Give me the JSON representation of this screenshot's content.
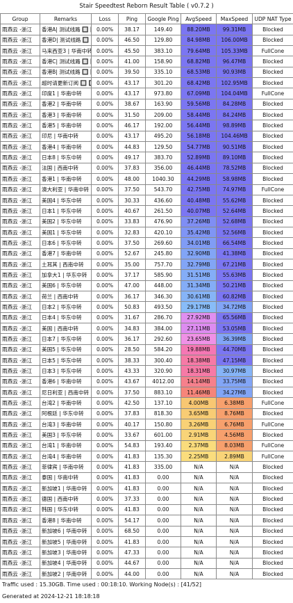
{
  "title": "Stair Speedtest Reborn Result Table ( v0.7.2 )",
  "headers": [
    "Group",
    "Remarks",
    "Loss",
    "Ping",
    "Google Ping",
    "AvgSpeed",
    "MaxSpeed",
    "UDP NAT Type"
  ],
  "rows": [
    {
      "group": "雨燕云 -浙江",
      "remark": "香港A| 测试线路 🔲 🔲",
      "loss": "0.00%",
      "ping": "38.17",
      "gping": "149.40",
      "avg": "88.20MB",
      "avg_color": "#7b76f2",
      "max": "99.31MB",
      "max_color": "#7b76f2",
      "nat": "Blocked"
    },
    {
      "group": "雨燕云 -浙江",
      "remark": "香港D| 测试线路 🔲 🔲",
      "loss": "0.00%",
      "ping": "46.50",
      "gping": "129.80",
      "avg": "84.98MB",
      "avg_color": "#7b76f2",
      "max": "106.00MB",
      "max_color": "#7b76f2",
      "nat": "Blocked"
    },
    {
      "group": "雨燕云 -浙江",
      "remark": "马来西亚3 | 华南中转",
      "loss": "0.00%",
      "ping": "45.50",
      "gping": "383.10",
      "avg": "79.64MB",
      "avg_color": "#7b76f2",
      "max": "105.33MB",
      "max_color": "#7b76f2",
      "nat": "FullCone"
    },
    {
      "group": "雨燕云 -浙江",
      "remark": "香港C| 测试线路 🔲 🔲",
      "loss": "0.00%",
      "ping": "41.00",
      "gping": "158.90",
      "avg": "68.82MB",
      "avg_color": "#7b76f2",
      "max": "96.47MB",
      "max_color": "#7b76f2",
      "nat": "Blocked"
    },
    {
      "group": "雨燕云 -浙江",
      "remark": "香港B| 测试线路 🔲 🔲",
      "loss": "0.00%",
      "ping": "39.50",
      "gping": "335.10",
      "avg": "68.53MB",
      "avg_color": "#7b76f2",
      "max": "90.93MB",
      "max_color": "#7b76f2",
      "nat": "Blocked"
    },
    {
      "group": "雨燕云 -浙江",
      "remark": "超时请更新订阅 🔲 🔲",
      "loss": "0.00%",
      "ping": "43.17",
      "gping": "301.20",
      "avg": "68.42MB",
      "avg_color": "#7b76f2",
      "max": "102.95MB",
      "max_color": "#7b76f2",
      "nat": "Blocked"
    },
    {
      "group": "雨燕云 -浙江",
      "remark": "印度1 | 华南中转",
      "loss": "0.00%",
      "ping": "43.17",
      "gping": "973.80",
      "avg": "67.09MB",
      "avg_color": "#7b76f2",
      "max": "104.04MB",
      "max_color": "#7b76f2",
      "nat": "FullCone"
    },
    {
      "group": "雨燕云 -浙江",
      "remark": "香港2 | 华南中转",
      "loss": "0.00%",
      "ping": "38.67",
      "gping": "163.90",
      "avg": "59.56MB",
      "avg_color": "#7b76f2",
      "max": "84.28MB",
      "max_color": "#7b76f2",
      "nat": "Blocked"
    },
    {
      "group": "雨燕云 -浙江",
      "remark": "香港3 | 华南中转",
      "loss": "0.00%",
      "ping": "31.50",
      "gping": "209.00",
      "avg": "58.44MB",
      "avg_color": "#7b76f2",
      "max": "84.24MB",
      "max_color": "#7b76f2",
      "nat": "Blocked"
    },
    {
      "group": "雨燕云 -浙江",
      "remark": "香港5 | 华南中转",
      "loss": "0.00%",
      "ping": "46.17",
      "gping": "192.00",
      "avg": "56.44MB",
      "avg_color": "#7b76f2",
      "max": "98.89MB",
      "max_color": "#7b76f2",
      "nat": "Blocked"
    },
    {
      "group": "雨燕云 -浙江",
      "remark": "印尼 | 华南中转",
      "loss": "0.00%",
      "ping": "43.17",
      "gping": "495.20",
      "avg": "56.18MB",
      "avg_color": "#7b76f2",
      "max": "104.46MB",
      "max_color": "#7b76f2",
      "nat": "Blocked"
    },
    {
      "group": "雨燕云 -浙江",
      "remark": "香港4 | 华南中转",
      "loss": "0.00%",
      "ping": "44.83",
      "gping": "129.50",
      "avg": "54.77MB",
      "avg_color": "#7b76f2",
      "max": "90.51MB",
      "max_color": "#7b76f2",
      "nat": "Blocked"
    },
    {
      "group": "雨燕云 -浙江",
      "remark": "日本8 | 华东中转",
      "loss": "0.00%",
      "ping": "49.17",
      "gping": "383.70",
      "avg": "52.89MB",
      "avg_color": "#7b76f2",
      "max": "89.10MB",
      "max_color": "#7b76f2",
      "nat": "Blocked"
    },
    {
      "group": "雨燕云 -浙江",
      "remark": "法国 | 西南中转",
      "loss": "0.00%",
      "ping": "37.83",
      "gping": "356.00",
      "avg": "46.44MB",
      "avg_color": "#7b76f2",
      "max": "78.52MB",
      "max_color": "#7b76f2",
      "nat": "Blocked"
    },
    {
      "group": "雨燕云 -浙江",
      "remark": "香港1 | 华南中转",
      "loss": "0.00%",
      "ping": "48.00",
      "gping": "1040.30",
      "avg": "44.29MB",
      "avg_color": "#7b76f2",
      "max": "58.98MB",
      "max_color": "#7b76f2",
      "nat": "Blocked"
    },
    {
      "group": "雨燕云 -浙江",
      "remark": "澳大利亚 | 华南中转",
      "loss": "0.00%",
      "ping": "37.50",
      "gping": "543.70",
      "avg": "42.75MB",
      "avg_color": "#7b76f2",
      "max": "74.97MB",
      "max_color": "#7b76f2",
      "nat": "FullCone"
    },
    {
      "group": "雨燕云 -浙江",
      "remark": "美国4 | 华东中转",
      "loss": "0.00%",
      "ping": "30.33",
      "gping": "436.60",
      "avg": "40.48MB",
      "avg_color": "#7b76f2",
      "max": "55.62MB",
      "max_color": "#7b76f2",
      "nat": "Blocked"
    },
    {
      "group": "雨燕云 -浙江",
      "remark": "日本1 | 华东中转",
      "loss": "0.00%",
      "ping": "40.67",
      "gping": "261.50",
      "avg": "40.07MB",
      "avg_color": "#7b76f2",
      "max": "52.64MB",
      "max_color": "#7b76f2",
      "nat": "Blocked"
    },
    {
      "group": "雨燕云 -浙江",
      "remark": "美国2 | 华东中转",
      "loss": "0.00%",
      "ping": "33.83",
      "gping": "476.90",
      "avg": "37.26MB",
      "avg_color": "#7f8ef4",
      "max": "52.68MB",
      "max_color": "#7b76f2",
      "nat": "Blocked"
    },
    {
      "group": "雨燕云 -浙江",
      "remark": "美国1 | 华东中转",
      "loss": "0.00%",
      "ping": "32.83",
      "gping": "420.10",
      "avg": "35.42MB",
      "avg_color": "#7f95f5",
      "max": "52.56MB",
      "max_color": "#7b76f2",
      "nat": "Blocked"
    },
    {
      "group": "雨燕云 -浙江",
      "remark": "日本6 | 华东中转",
      "loss": "0.00%",
      "ping": "37.50",
      "gping": "269.60",
      "avg": "34.01MB",
      "avg_color": "#809cf5",
      "max": "66.54MB",
      "max_color": "#7b76f2",
      "nat": "Blocked"
    },
    {
      "group": "雨燕云 -浙江",
      "remark": "香港7 | 华南中转",
      "loss": "0.00%",
      "ping": "52.67",
      "gping": "245.80",
      "avg": "32.90MB",
      "avg_color": "#82a5f6",
      "max": "41.38MB",
      "max_color": "#7b76f2",
      "nat": "Blocked"
    },
    {
      "group": "雨燕云 -浙江",
      "remark": "土耳其 | 西南中转",
      "loss": "0.00%",
      "ping": "35.00",
      "gping": "757.70",
      "avg": "32.79MB",
      "avg_color": "#82a5f6",
      "max": "67.21MB",
      "max_color": "#7b76f2",
      "nat": "Blocked"
    },
    {
      "group": "雨燕云 -浙江",
      "remark": "加拿大1 | 华东中转",
      "loss": "0.00%",
      "ping": "37.17",
      "gping": "585.90",
      "avg": "31.51MB",
      "avg_color": "#84adf7",
      "max": "55.63MB",
      "max_color": "#7b76f2",
      "nat": "Blocked"
    },
    {
      "group": "雨燕云 -浙江",
      "remark": "美国6 | 华东中转",
      "loss": "0.00%",
      "ping": "47.00",
      "gping": "448.00",
      "avg": "31.34MB",
      "avg_color": "#84adf7",
      "max": "50.21MB",
      "max_color": "#7b76f2",
      "nat": "Blocked"
    },
    {
      "group": "雨燕云 -浙江",
      "remark": "荷兰 | 西南中转",
      "loss": "0.00%",
      "ping": "36.17",
      "gping": "346.30",
      "avg": "30.61MB",
      "avg_color": "#86b4f7",
      "max": "60.82MB",
      "max_color": "#7b76f2",
      "nat": "Blocked"
    },
    {
      "group": "雨燕云 -浙江",
      "remark": "日本2 | 华东中转",
      "loss": "0.00%",
      "ping": "50.83",
      "gping": "493.50",
      "avg": "29.17MB",
      "avg_color": "#88bcf8",
      "max": "34.72MB",
      "max_color": "#82a5f6",
      "nat": "Blocked"
    },
    {
      "group": "雨燕云 -浙江",
      "remark": "日本4 | 华东中转",
      "loss": "0.00%",
      "ping": "31.67",
      "gping": "286.70",
      "avg": "27.92MB",
      "avg_color": "#e08ff0",
      "max": "65.56MB",
      "max_color": "#7b76f2",
      "nat": "Blocked"
    },
    {
      "group": "雨燕云 -浙江",
      "remark": "美国 | 西南中转",
      "loss": "0.00%",
      "ping": "34.83",
      "gping": "384.00",
      "avg": "27.11MB",
      "avg_color": "#dd8cf0",
      "max": "53.05MB",
      "max_color": "#7b76f2",
      "nat": "Blocked"
    },
    {
      "group": "雨燕云 -浙江",
      "remark": "日本7 | 华东中转",
      "loss": "0.00%",
      "ping": "36.17",
      "gping": "292.60",
      "avg": "23.65MB",
      "avg_color": "#ef91e6",
      "max": "36.39MB",
      "max_color": "#82a5f6",
      "nat": "Blocked"
    },
    {
      "group": "雨燕云 -浙江",
      "remark": "美国5 | 华东中转",
      "loss": "0.00%",
      "ping": "28.50",
      "gping": "584.20",
      "avg": "19.88MB",
      "avg_color": "#f577b4",
      "max": "44.70MB",
      "max_color": "#7b76f2",
      "nat": "Blocked"
    },
    {
      "group": "雨燕云 -浙江",
      "remark": "日本5 | 华东中转",
      "loss": "0.00%",
      "ping": "38.33",
      "gping": "300.40",
      "avg": "18.38MB",
      "avg_color": "#f67aa6",
      "max": "47.15MB",
      "max_color": "#7b76f2",
      "nat": "Blocked"
    },
    {
      "group": "雨燕云 -浙江",
      "remark": "日本3 | 华东中转",
      "loss": "0.00%",
      "ping": "43.33",
      "gping": "320.90",
      "avg": "18.31MB",
      "avg_color": "#f67aa6",
      "max": "30.97MB",
      "max_color": "#86b4f7",
      "nat": "Blocked"
    },
    {
      "group": "雨燕云 -浙江",
      "remark": "香港6 | 华南中转",
      "loss": "0.00%",
      "ping": "43.67",
      "gping": "4012.00",
      "avg": "14.14MB",
      "avg_color": "#f6808c",
      "max": "33.75MB",
      "max_color": "#82a5f6",
      "nat": "Blocked"
    },
    {
      "group": "雨燕云 -浙江",
      "remark": "尼日利亚 | 西南中转",
      "loss": "0.00%",
      "ping": "37.50",
      "gping": "883.10",
      "avg": "11.46MB",
      "avg_color": "#f6857a",
      "max": "34.27MB",
      "max_color": "#82a5f6",
      "nat": "Blocked"
    },
    {
      "group": "雨燕云 -浙江",
      "remark": "台湾2 | 华南中转",
      "loss": "0.00%",
      "ping": "42.50",
      "gping": "137.10",
      "avg": "4.00MB",
      "avg_color": "#f8c772",
      "max": "6.38MB",
      "max_color": "#f7a06d",
      "nat": "FullCone"
    },
    {
      "group": "雨燕云 -浙江",
      "remark": "阿根廷 | 华东中转",
      "loss": "0.00%",
      "ping": "37.83",
      "gping": "818.30",
      "avg": "3.65MB",
      "avg_color": "#f8cc74",
      "max": "8.76MB",
      "max_color": "#f7a06d",
      "nat": "Blocked"
    },
    {
      "group": "雨燕云 -浙江",
      "remark": "台湾3 | 华南中转",
      "loss": "0.00%",
      "ping": "40.17",
      "gping": "150.80",
      "avg": "3.26MB",
      "avg_color": "#f9d176",
      "max": "6.76MB",
      "max_color": "#f7a06d",
      "nat": "FullCone"
    },
    {
      "group": "雨燕云 -浙江",
      "remark": "美国3 | 华东中转",
      "loss": "0.00%",
      "ping": "33.67",
      "gping": "601.00",
      "avg": "2.91MB",
      "avg_color": "#f9d478",
      "max": "4.56MB",
      "max_color": "#f7a06d",
      "nat": "Blocked"
    },
    {
      "group": "雨燕云 -浙江",
      "remark": "台湾1 | 华南中转",
      "loss": "0.00%",
      "ping": "54.83",
      "gping": "193.40",
      "avg": "2.37MB",
      "avg_color": "#fadc7c",
      "max": "8.03MB",
      "max_color": "#f7a06d",
      "nat": "FullCone"
    },
    {
      "group": "雨燕云 -浙江",
      "remark": "台湾4 | 华南中转",
      "loss": "0.00%",
      "ping": "41.83",
      "gping": "135.30",
      "avg": "2.25MB",
      "avg_color": "#fadd7d",
      "max": "2.89MB",
      "max_color": "#f9d478",
      "nat": "FullCone"
    },
    {
      "group": "雨燕云 -浙江",
      "remark": "菲律宾 | 华南中转",
      "loss": "0.00%",
      "ping": "41.83",
      "gping": "335.00",
      "avg": "N/A",
      "avg_color": "",
      "max": "N/A",
      "max_color": "",
      "nat": "Blocked"
    },
    {
      "group": "雨燕云 -浙江",
      "remark": "泰国 | 华南中转",
      "loss": "0.00%",
      "ping": "41.83",
      "gping": "0.00",
      "avg": "N/A",
      "avg_color": "",
      "max": "N/A",
      "max_color": "",
      "nat": "Blocked"
    },
    {
      "group": "雨燕云 -浙江",
      "remark": "新加坡1 | 华南中转",
      "loss": "0.00%",
      "ping": "41.83",
      "gping": "0.00",
      "avg": "N/A",
      "avg_color": "",
      "max": "N/A",
      "max_color": "",
      "nat": "Blocked"
    },
    {
      "group": "雨燕云 -浙江",
      "remark": "德国 | 西南中转",
      "loss": "0.00%",
      "ping": "37.33",
      "gping": "0.00",
      "avg": "N/A",
      "avg_color": "",
      "max": "N/A",
      "max_color": "",
      "nat": "Blocked"
    },
    {
      "group": "雨燕云 -浙江",
      "remark": "韩国 | 华东中转",
      "loss": "0.00%",
      "ping": "41.83",
      "gping": "0.00",
      "avg": "N/A",
      "avg_color": "",
      "max": "N/A",
      "max_color": "",
      "nat": "Blocked"
    },
    {
      "group": "雨燕云 -浙江",
      "remark": "香港8 | 华南中转",
      "loss": "0.00%",
      "ping": "54.17",
      "gping": "0.00",
      "avg": "N/A",
      "avg_color": "",
      "max": "N/A",
      "max_color": "",
      "nat": "Blocked"
    },
    {
      "group": "雨燕云 -浙江",
      "remark": "新加坡6 | 华南中转",
      "loss": "0.00%",
      "ping": "68.50",
      "gping": "0.00",
      "avg": "N/A",
      "avg_color": "",
      "max": "N/A",
      "max_color": "",
      "nat": "Blocked"
    },
    {
      "group": "雨燕云 -浙江",
      "remark": "新加坡5 | 华南中转",
      "loss": "0.00%",
      "ping": "41.83",
      "gping": "0.00",
      "avg": "N/A",
      "avg_color": "",
      "max": "N/A",
      "max_color": "",
      "nat": "Blocked"
    },
    {
      "group": "雨燕云 -浙江",
      "remark": "新加坡3 | 华南中转",
      "loss": "0.00%",
      "ping": "47.33",
      "gping": "0.00",
      "avg": "N/A",
      "avg_color": "",
      "max": "N/A",
      "max_color": "",
      "nat": "Blocked"
    },
    {
      "group": "雨燕云 -浙江",
      "remark": "新加坡4 | 华南中转",
      "loss": "0.00%",
      "ping": "44.67",
      "gping": "0.00",
      "avg": "N/A",
      "avg_color": "",
      "max": "N/A",
      "max_color": "",
      "nat": "Blocked"
    },
    {
      "group": "雨燕云 -浙江",
      "remark": "新加坡2 | 华南中转",
      "loss": "0.00%",
      "ping": "44.00",
      "gping": "0.00",
      "avg": "N/A",
      "avg_color": "",
      "max": "N/A",
      "max_color": "",
      "nat": "Blocked"
    }
  ],
  "footer": {
    "traffic": "Traffic used : 15.30GB. Time used : 00:18:10. Working Node(s) : [41/52]",
    "generated": "Generated at 2024-12-21 18:18:18"
  }
}
